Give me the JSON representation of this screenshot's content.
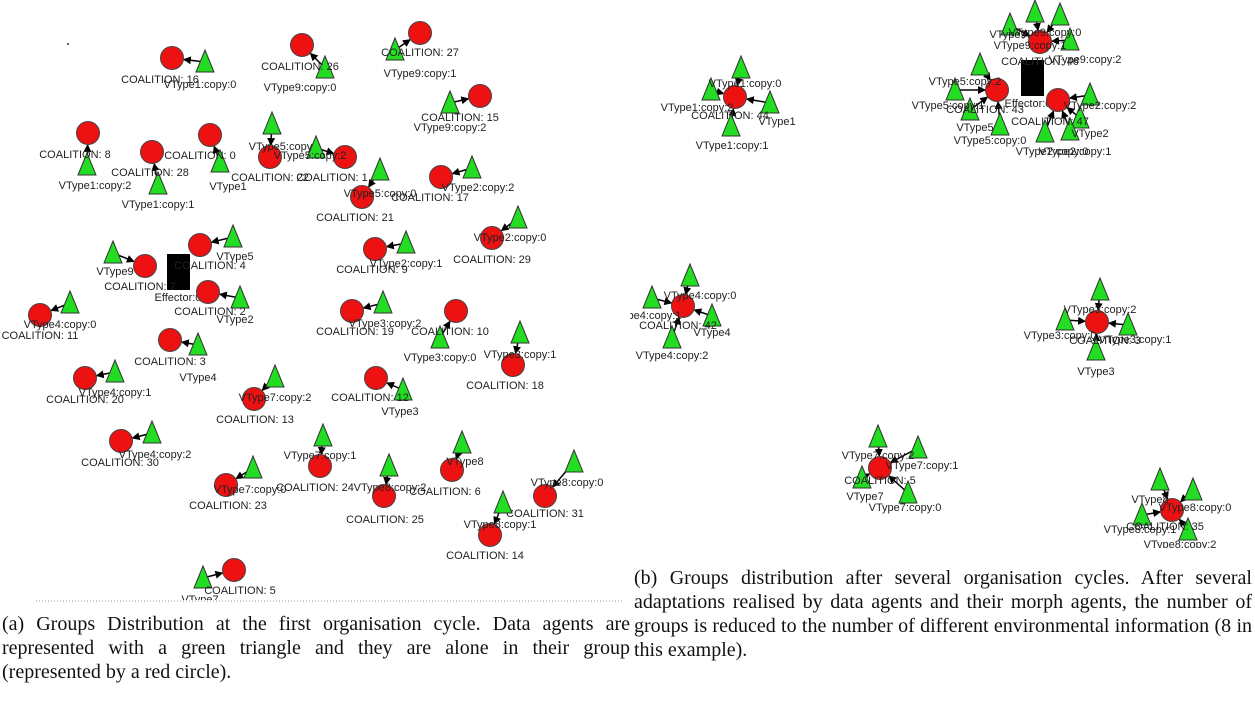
{
  "panel_a": {
    "nodes": [
      {
        "coalition": "COALITION: 16",
        "agent": "VType1:copy:0"
      },
      {
        "coalition": "COALITION: 26",
        "agent": "VType9:copy:0"
      },
      {
        "coalition": "COALITION: 27",
        "agent": "VType9:copy:1"
      },
      {
        "coalition": "COALITION: 15",
        "agent": "VType9:copy:2"
      },
      {
        "coalition": "COALITION: 8",
        "agent": "VType1:copy:2"
      },
      {
        "coalition": "COALITION: 28",
        "agent": "VType1:copy:1"
      },
      {
        "coalition": "COALITION: 0",
        "agent": "VType1"
      },
      {
        "coalition": "COALITION: 22",
        "agent": "VType5:copy:1"
      },
      {
        "coalition": "COALITION: 1",
        "agent": "VType5:copy:2"
      },
      {
        "coalition": "COALITION: 21",
        "agent": "VType5:copy:0"
      },
      {
        "coalition": "COALITION: 17",
        "agent": "VType2:copy:2"
      },
      {
        "coalition": "COALITION: 29",
        "agent": "VType2:copy:0"
      },
      {
        "coalition": "COALITION: 9",
        "agent": "VType2:copy:1"
      },
      {
        "coalition": "COALITION: 4",
        "agent": "VType5"
      },
      {
        "coalition": "COALITION: 7",
        "agent": "VType9"
      },
      {
        "coalition": "COALITION: 2",
        "agent": "VType2"
      },
      {
        "coalition": "COALITION: 11",
        "agent": "VType4:copy:0"
      },
      {
        "coalition": "COALITION: 19",
        "agent": "VType3:copy:2"
      },
      {
        "coalition": "COALITION: 10",
        "agent": "VType3:copy:0"
      },
      {
        "coalition": "COALITION: 18",
        "agent": "VType3:copy:1"
      },
      {
        "coalition": "COALITION: 3",
        "agent": "VType4"
      },
      {
        "coalition": "COALITION: 20",
        "agent": "VType4:copy:1"
      },
      {
        "coalition": "COALITION: 12",
        "agent": "VType3"
      },
      {
        "coalition": "COALITION: 13",
        "agent": "VType7:copy:2"
      },
      {
        "coalition": "COALITION: 30",
        "agent": "VType4:copy:2"
      },
      {
        "coalition": "COALITION: 24",
        "agent": "VType7:copy:1"
      },
      {
        "coalition": "COALITION: 23",
        "agent": "VType7:copy:0"
      },
      {
        "coalition": "COALITION: 25",
        "agent": "VType8:copy:2"
      },
      {
        "coalition": "COALITION: 6",
        "agent": "VType8"
      },
      {
        "coalition": "COALITION: 31",
        "agent": "VType8:copy:0"
      },
      {
        "coalition": "COALITION: 14",
        "agent": "VType8:copy:1"
      },
      {
        "coalition": "COALITION: 5",
        "agent": "VType7"
      }
    ],
    "effector": "Effector:0",
    "caption": "(a) Groups Distribution at the first organisation cycle. Data agents are represented with a green triangle and they are alone in their group (represented by a red circle)."
  },
  "panel_b": {
    "coalitions": [
      "COALITION: 44",
      "COALITION: 43",
      "COALITION: 46",
      "COALITION: 47",
      "COALITION: 42",
      "COALITION: 3",
      "COALITION: 5",
      "COALITION: 35"
    ],
    "agents": [
      "VType1:copy:0",
      "VType1:copy:2",
      "VType1",
      "VType1:copy:1",
      "VType9:copy:1",
      "VType9",
      "VType9:copy:2",
      "VType9:copy:0",
      "VType5:copy:2",
      "VType5",
      "VType5:copy:0",
      "VType5:copy:1",
      "VType2:copy:2",
      "VType2",
      "VType2:copy:0",
      "VType2:copy:1",
      "VType4:copy:0",
      "VType4:copy:1",
      "VType4",
      "VType4:copy:2",
      "VType3:copy:2",
      "VType3:copy:0",
      "VType3:copy:1",
      "VType3",
      "VType7:copy:2",
      "VType7:copy:1",
      "VType7",
      "VType7:copy:0",
      "VType8",
      "VType8:copy:0",
      "VType8:copy:1",
      "VType8:copy:2"
    ],
    "effector": "Effector:0",
    "caption": "(b) Groups distribution after several organisation cycles. After several adaptations realised by data agents and their morph agents, the number of groups is reduced to the number of different environmental information (8 in this example)."
  }
}
